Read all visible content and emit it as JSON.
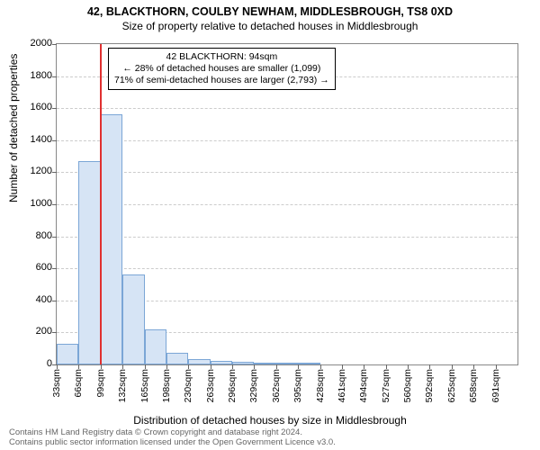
{
  "title": "42, BLACKTHORN, COULBY NEWHAM, MIDDLESBROUGH, TS8 0XD",
  "subtitle": "Size of property relative to detached houses in Middlesbrough",
  "ylabel": "Number of detached properties",
  "xlabel": "Distribution of detached houses by size in Middlesbrough",
  "chart": {
    "type": "histogram",
    "ylim": [
      0,
      2000
    ],
    "ytick_step": 200,
    "bar_fill": "#d6e4f5",
    "bar_border": "#7ba6d6",
    "grid_color": "#cccccc",
    "background_color": "#ffffff",
    "marker_color": "#e03030",
    "marker_x_category_index": 2,
    "xtick_labels": [
      "33sqm",
      "66sqm",
      "99sqm",
      "132sqm",
      "165sqm",
      "198sqm",
      "230sqm",
      "263sqm",
      "296sqm",
      "329sqm",
      "362sqm",
      "395sqm",
      "428sqm",
      "461sqm",
      "494sqm",
      "527sqm",
      "560sqm",
      "592sqm",
      "625sqm",
      "658sqm",
      "691sqm"
    ],
    "values": [
      130,
      1270,
      1560,
      560,
      220,
      75,
      35,
      25,
      15,
      10,
      8,
      5,
      0,
      0,
      0,
      0,
      0,
      0,
      0,
      0
    ]
  },
  "annotation": {
    "line1": "42 BLACKTHORN: 94sqm",
    "line2": "← 28% of detached houses are smaller (1,099)",
    "line3": "71% of semi-detached houses are larger (2,793) →"
  },
  "footer": {
    "line1": "Contains HM Land Registry data © Crown copyright and database right 2024.",
    "line2": "Contains public sector information licensed under the Open Government Licence v3.0."
  }
}
